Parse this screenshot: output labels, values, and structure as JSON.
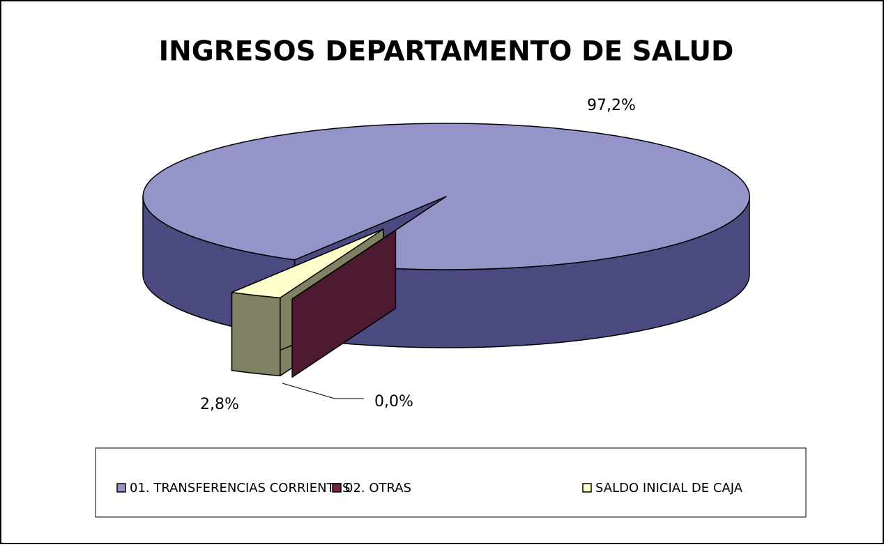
{
  "chart_data": {
    "type": "pie3d",
    "title": "INGRESOS DEPARTAMENTO DE SALUD",
    "categories": [
      "01. TRANSFERENCIAS CORRIENTES",
      "02. OTRAS",
      "SALDO INICIAL DE CAJA"
    ],
    "values": [
      97.2,
      0.0,
      2.8
    ],
    "value_labels": [
      "97,2%",
      "0,0%",
      "2,8%"
    ],
    "colors": [
      "#9494c8",
      "#7a2046",
      "#ffffcc"
    ],
    "side_colors": [
      "#4a4a80",
      "#4e1a32",
      "#808062"
    ],
    "legend": "bottom"
  }
}
